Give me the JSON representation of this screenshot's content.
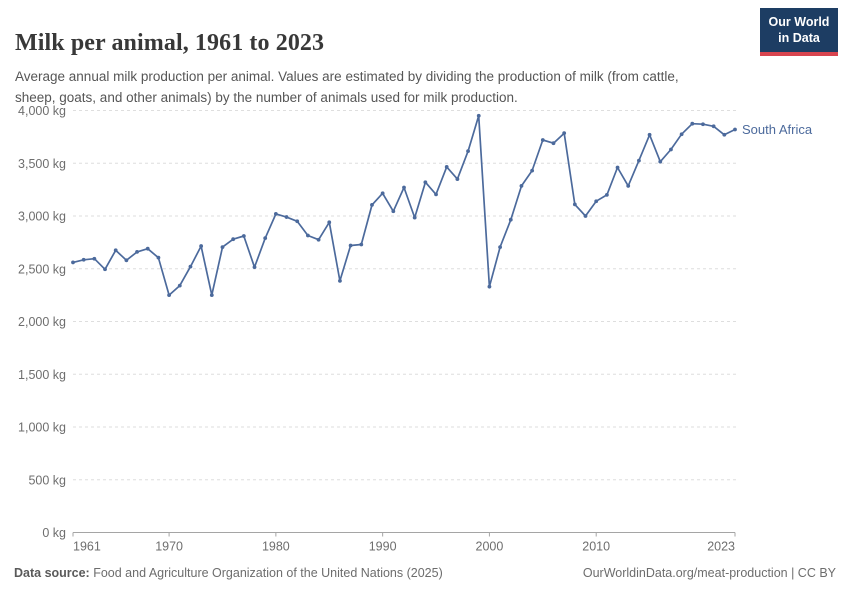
{
  "header": {
    "title": "Milk per animal, 1961 to 2023",
    "subtitle": "Average annual milk production per animal. Values are estimated by dividing the production of milk (from cattle, sheep, goats, and other animals) by the number of animals used for milk production."
  },
  "logo": {
    "line1": "Our World",
    "line2": "in Data"
  },
  "colors": {
    "line": "#4c6a9c",
    "entity_label": "#4c6a9c",
    "logo_bg": "#1d3d63",
    "logo_accent": "#d8444f",
    "grid": "#dedede",
    "axis": "#a5a5a5",
    "tick_text": "#6e6e6e"
  },
  "chart_data": {
    "type": "line",
    "title": "Milk per animal, 1961 to 2023",
    "unit": "kg",
    "xlabel": "",
    "ylabel": "",
    "xlim": [
      1961,
      2023
    ],
    "ylim": [
      0,
      4000
    ],
    "grid": "horizontal-dashed",
    "legend_position": "end-of-line-label",
    "x_ticks": [
      1961,
      1970,
      1980,
      1990,
      2000,
      2010,
      2023
    ],
    "y_ticks": [
      0,
      500,
      1000,
      1500,
      2000,
      2500,
      3000,
      3500,
      4000
    ],
    "y_tick_labels": [
      "0 kg",
      "500 kg",
      "1,000 kg",
      "1,500 kg",
      "2,000 kg",
      "2,500 kg",
      "3,000 kg",
      "3,500 kg",
      "4,000 kg"
    ],
    "series": [
      {
        "name": "South Africa",
        "color": "#4c6a9c",
        "x": [
          1961,
          1962,
          1963,
          1964,
          1965,
          1966,
          1967,
          1968,
          1969,
          1970,
          1971,
          1972,
          1973,
          1974,
          1975,
          1976,
          1977,
          1978,
          1979,
          1980,
          1981,
          1982,
          1983,
          1984,
          1985,
          1986,
          1987,
          1988,
          1989,
          1990,
          1991,
          1992,
          1993,
          1994,
          1995,
          1996,
          1997,
          1998,
          1999,
          2000,
          2001,
          2002,
          2003,
          2004,
          2005,
          2006,
          2007,
          2008,
          2009,
          2010,
          2011,
          2012,
          2013,
          2014,
          2015,
          2016,
          2017,
          2018,
          2019,
          2020,
          2021,
          2022,
          2023
        ],
        "values": [
          2560,
          2585,
          2595,
          2495,
          2675,
          2580,
          2660,
          2690,
          2605,
          2250,
          2340,
          2520,
          2715,
          2250,
          2705,
          2780,
          2810,
          2515,
          2790,
          3020,
          2990,
          2950,
          2815,
          2775,
          2940,
          2385,
          2720,
          2730,
          3105,
          3215,
          3045,
          3270,
          2985,
          3320,
          3205,
          3465,
          3350,
          3615,
          3950,
          2330,
          2705,
          2965,
          3285,
          3430,
          3720,
          3690,
          3785,
          3110,
          3000,
          3140,
          3200,
          3460,
          3285,
          3525,
          3770,
          3515,
          3630,
          3775,
          3875,
          3870,
          3850,
          3770,
          3820
        ]
      }
    ]
  },
  "footer": {
    "source_label": "Data source:",
    "source_text": "Food and Agriculture Organization of the United Nations (2025)",
    "credit": "OurWorldinData.org/meat-production | CC BY"
  }
}
